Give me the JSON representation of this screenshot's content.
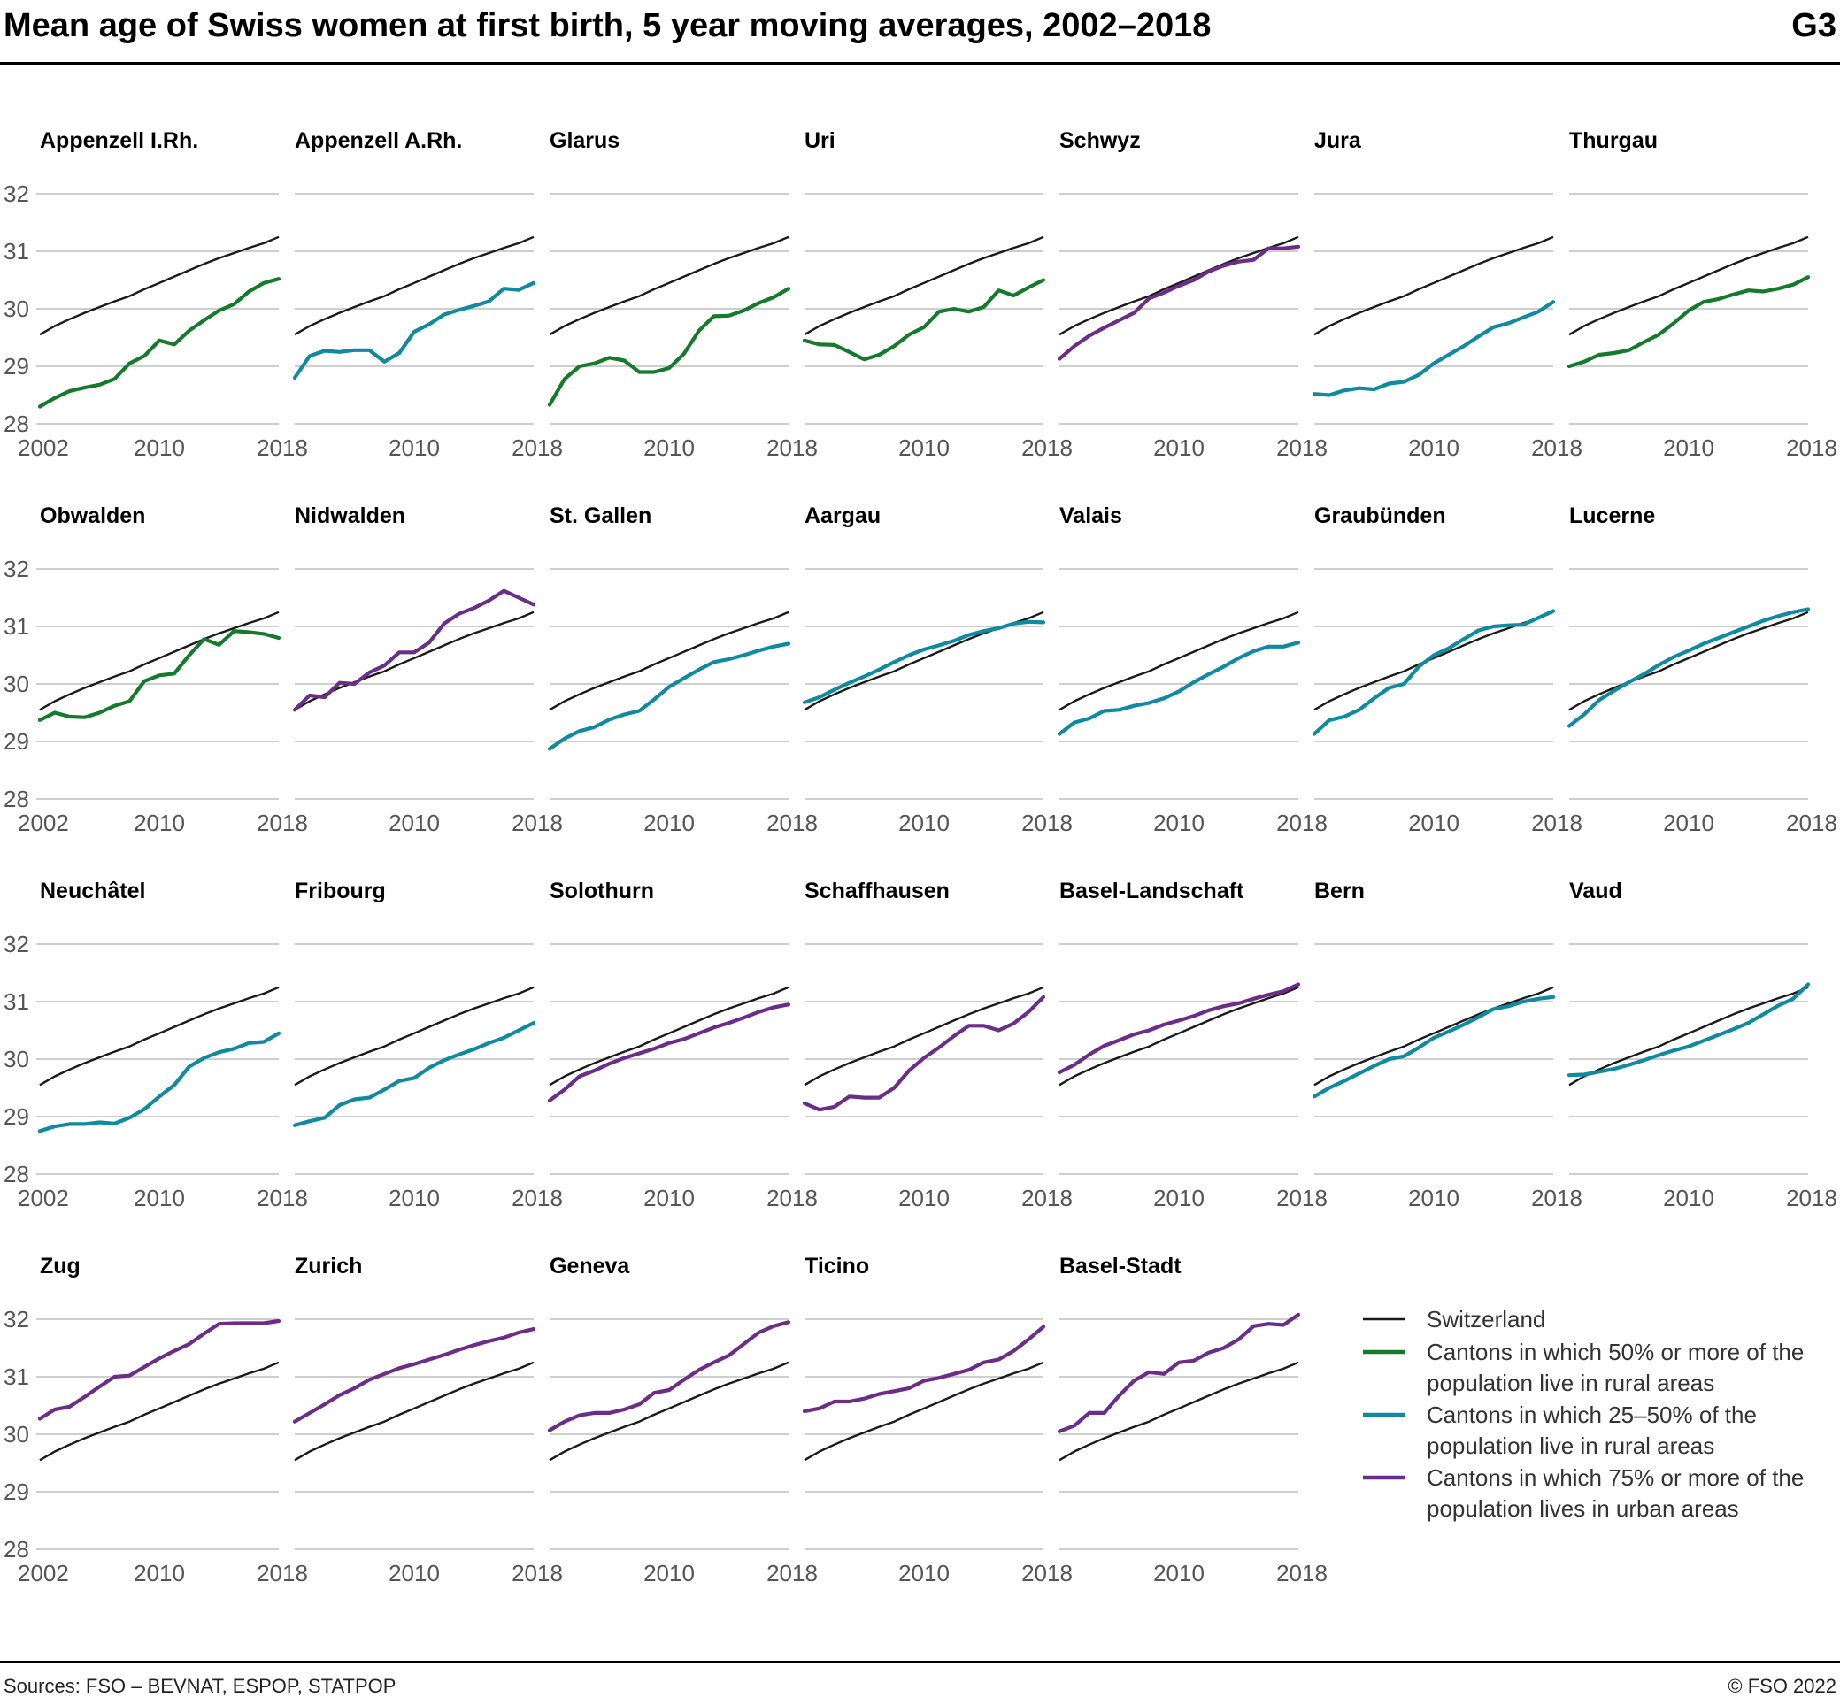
{
  "header": {
    "title": "Mean age of Swiss women at first birth, 5 year moving averages, 2002–2018",
    "figure_id": "G3"
  },
  "footer": {
    "sources": "Sources: FSO – BEVNAT, ESPOP, STATPOP",
    "copyright": "© FSO 2022"
  },
  "colors": {
    "switzerland": "#1a1a1a",
    "rural50": "#157a2c",
    "rural25_50": "#0f8a9e",
    "urban75": "#6b2d87",
    "grid": "#bdbdbd"
  },
  "legend": [
    {
      "key": "switzerland",
      "lines": [
        "Switzerland"
      ]
    },
    {
      "key": "rural50",
      "lines": [
        "Cantons in which 50% or more of  the",
        "population live in rural areas"
      ]
    },
    {
      "key": "rural25_50",
      "lines": [
        "Cantons in which 25–50% of the",
        "population live in rural areas"
      ]
    },
    {
      "key": "urban75",
      "lines": [
        "Cantons in which 75% or more of the",
        "population lives in urban areas"
      ]
    }
  ],
  "chart_data": {
    "type": "line",
    "x": [
      2002,
      2003,
      2004,
      2005,
      2006,
      2007,
      2008,
      2009,
      2010,
      2011,
      2012,
      2013,
      2014,
      2015,
      2016,
      2017,
      2018
    ],
    "x_ticks": [
      "2002",
      "2010",
      "2018"
    ],
    "y_ticks": [
      "32",
      "31",
      "30",
      "29",
      "28"
    ],
    "ylim": [
      28,
      32
    ],
    "grid": "horizontal",
    "legend_position": "bottom-right",
    "reference": {
      "name": "Switzerland",
      "values": [
        29.55,
        29.7,
        29.82,
        29.93,
        30.03,
        30.13,
        30.22,
        30.34,
        30.45,
        30.56,
        30.67,
        30.78,
        30.88,
        30.97,
        31.06,
        31.14,
        31.25
      ]
    },
    "panels": [
      {
        "name": "Appenzell I.Rh.",
        "group": "rural50",
        "values": [
          28.3,
          28.45,
          28.57,
          28.63,
          28.68,
          28.78,
          29.05,
          29.18,
          29.45,
          29.38,
          29.62,
          29.8,
          29.97,
          30.08,
          30.3,
          30.45,
          30.52
        ]
      },
      {
        "name": "Appenzell A.Rh.",
        "group": "rural25_50",
        "values": [
          28.8,
          29.18,
          29.27,
          29.25,
          29.28,
          29.28,
          29.08,
          29.23,
          29.6,
          29.73,
          29.9,
          29.98,
          30.05,
          30.13,
          30.35,
          30.33,
          30.45
        ]
      },
      {
        "name": "Glarus",
        "group": "rural50",
        "values": [
          28.33,
          28.78,
          29.0,
          29.05,
          29.15,
          29.1,
          28.9,
          28.9,
          28.97,
          29.22,
          29.62,
          29.87,
          29.88,
          29.97,
          30.1,
          30.2,
          30.35
        ]
      },
      {
        "name": "Uri",
        "group": "rural50",
        "values": [
          29.45,
          29.38,
          29.37,
          29.25,
          29.12,
          29.2,
          29.35,
          29.55,
          29.68,
          29.95,
          30.0,
          29.95,
          30.03,
          30.32,
          30.23,
          30.37,
          30.5
        ]
      },
      {
        "name": "Schwyz",
        "group": "urban75",
        "values": [
          29.13,
          29.35,
          29.53,
          29.67,
          29.8,
          29.93,
          30.18,
          30.28,
          30.4,
          30.5,
          30.65,
          30.75,
          30.82,
          30.85,
          31.05,
          31.05,
          31.08
        ]
      },
      {
        "name": "Jura",
        "group": "rural25_50",
        "values": [
          28.52,
          28.5,
          28.58,
          28.62,
          28.6,
          28.7,
          28.73,
          28.85,
          29.05,
          29.2,
          29.35,
          29.52,
          29.68,
          29.75,
          29.85,
          29.95,
          30.12
        ]
      },
      {
        "name": "Thurgau",
        "group": "rural50",
        "values": [
          29.0,
          29.08,
          29.2,
          29.23,
          29.28,
          29.42,
          29.55,
          29.75,
          29.97,
          30.12,
          30.17,
          30.25,
          30.32,
          30.3,
          30.35,
          30.42,
          30.55
        ]
      },
      {
        "name": "Obwalden",
        "group": "rural50",
        "values": [
          29.37,
          29.5,
          29.43,
          29.42,
          29.5,
          29.62,
          29.7,
          30.05,
          30.15,
          30.18,
          30.5,
          30.78,
          30.68,
          30.92,
          30.9,
          30.87,
          30.8
        ]
      },
      {
        "name": "Nidwalden",
        "group": "urban75",
        "values": [
          29.55,
          29.8,
          29.77,
          30.02,
          30.0,
          30.2,
          30.32,
          30.55,
          30.55,
          30.72,
          31.05,
          31.22,
          31.32,
          31.45,
          31.62,
          31.5,
          31.38
        ]
      },
      {
        "name": "St. Gallen",
        "group": "rural25_50",
        "values": [
          28.87,
          29.05,
          29.18,
          29.25,
          29.38,
          29.47,
          29.53,
          29.73,
          29.95,
          30.1,
          30.25,
          30.38,
          30.43,
          30.5,
          30.58,
          30.65,
          30.7
        ]
      },
      {
        "name": "Aargau",
        "group": "rural25_50",
        "values": [
          29.68,
          29.77,
          29.9,
          30.02,
          30.13,
          30.25,
          30.38,
          30.5,
          30.6,
          30.67,
          30.75,
          30.85,
          30.92,
          30.97,
          31.05,
          31.08,
          31.07
        ]
      },
      {
        "name": "Valais",
        "group": "rural25_50",
        "values": [
          29.13,
          29.33,
          29.4,
          29.53,
          29.55,
          29.62,
          29.67,
          29.75,
          29.87,
          30.03,
          30.17,
          30.3,
          30.45,
          30.57,
          30.65,
          30.65,
          30.72
        ]
      },
      {
        "name": "Graubünden",
        "group": "rural25_50",
        "values": [
          29.13,
          29.37,
          29.43,
          29.55,
          29.75,
          29.93,
          30.0,
          30.3,
          30.5,
          30.62,
          30.78,
          30.93,
          31.0,
          31.02,
          31.03,
          31.15,
          31.27
        ]
      },
      {
        "name": "Lucerne",
        "group": "rural25_50",
        "values": [
          29.27,
          29.47,
          29.72,
          29.88,
          30.03,
          30.17,
          30.33,
          30.47,
          30.58,
          30.7,
          30.8,
          30.9,
          31.0,
          31.1,
          31.18,
          31.25,
          31.3
        ]
      },
      {
        "name": "Neuchâtel",
        "group": "rural25_50",
        "values": [
          28.75,
          28.83,
          28.87,
          28.87,
          28.9,
          28.88,
          28.98,
          29.13,
          29.35,
          29.55,
          29.87,
          30.02,
          30.12,
          30.18,
          30.28,
          30.3,
          30.45
        ]
      },
      {
        "name": "Fribourg",
        "group": "rural25_50",
        "values": [
          28.85,
          28.92,
          28.98,
          29.2,
          29.3,
          29.33,
          29.47,
          29.62,
          29.67,
          29.85,
          29.98,
          30.08,
          30.17,
          30.28,
          30.37,
          30.5,
          30.63
        ]
      },
      {
        "name": "Solothurn",
        "group": "urban75",
        "values": [
          29.28,
          29.47,
          29.7,
          29.8,
          29.92,
          30.02,
          30.1,
          30.18,
          30.28,
          30.35,
          30.45,
          30.55,
          30.63,
          30.72,
          30.82,
          30.9,
          30.95
        ]
      },
      {
        "name": "Schaffhausen",
        "group": "urban75",
        "values": [
          29.23,
          29.12,
          29.17,
          29.35,
          29.33,
          29.33,
          29.5,
          29.8,
          30.02,
          30.2,
          30.4,
          30.58,
          30.58,
          30.5,
          30.62,
          30.82,
          31.08
        ]
      },
      {
        "name": "Basel-Landschaft",
        "group": "urban75",
        "values": [
          29.77,
          29.9,
          30.08,
          30.23,
          30.33,
          30.43,
          30.5,
          30.6,
          30.67,
          30.75,
          30.85,
          30.92,
          30.97,
          31.05,
          31.12,
          31.18,
          31.3
        ]
      },
      {
        "name": "Bern",
        "group": "rural25_50",
        "values": [
          29.35,
          29.5,
          29.62,
          29.75,
          29.88,
          30.0,
          30.05,
          30.2,
          30.37,
          30.48,
          30.6,
          30.73,
          30.87,
          30.92,
          31.0,
          31.05,
          31.08
        ]
      },
      {
        "name": "Vaud",
        "group": "rural25_50",
        "values": [
          29.72,
          29.73,
          29.78,
          29.83,
          29.9,
          29.98,
          30.07,
          30.15,
          30.22,
          30.32,
          30.42,
          30.52,
          30.63,
          30.78,
          30.93,
          31.05,
          31.3
        ]
      },
      {
        "name": "Zug",
        "group": "urban75",
        "values": [
          30.27,
          30.43,
          30.48,
          30.65,
          30.83,
          31.0,
          31.02,
          31.17,
          31.32,
          31.45,
          31.57,
          31.75,
          31.92,
          31.93,
          31.93,
          31.93,
          31.97
        ]
      },
      {
        "name": "Zurich",
        "group": "urban75",
        "values": [
          30.22,
          30.37,
          30.52,
          30.68,
          30.8,
          30.95,
          31.05,
          31.15,
          31.22,
          31.3,
          31.38,
          31.47,
          31.55,
          31.62,
          31.68,
          31.77,
          31.83
        ]
      },
      {
        "name": "Geneva",
        "group": "urban75",
        "values": [
          30.07,
          30.22,
          30.33,
          30.37,
          30.37,
          30.43,
          30.52,
          30.72,
          30.77,
          30.95,
          31.12,
          31.25,
          31.37,
          31.57,
          31.77,
          31.88,
          31.95
        ]
      },
      {
        "name": "Ticino",
        "group": "urban75",
        "values": [
          30.4,
          30.45,
          30.57,
          30.57,
          30.62,
          30.7,
          30.75,
          30.8,
          30.93,
          30.98,
          31.05,
          31.12,
          31.25,
          31.3,
          31.45,
          31.65,
          31.87
        ]
      },
      {
        "name": "Basel-Stadt",
        "group": "urban75",
        "values": [
          30.05,
          30.15,
          30.37,
          30.37,
          30.67,
          30.93,
          31.08,
          31.05,
          31.25,
          31.28,
          31.42,
          31.5,
          31.65,
          31.88,
          31.92,
          31.9,
          32.08
        ]
      }
    ]
  }
}
